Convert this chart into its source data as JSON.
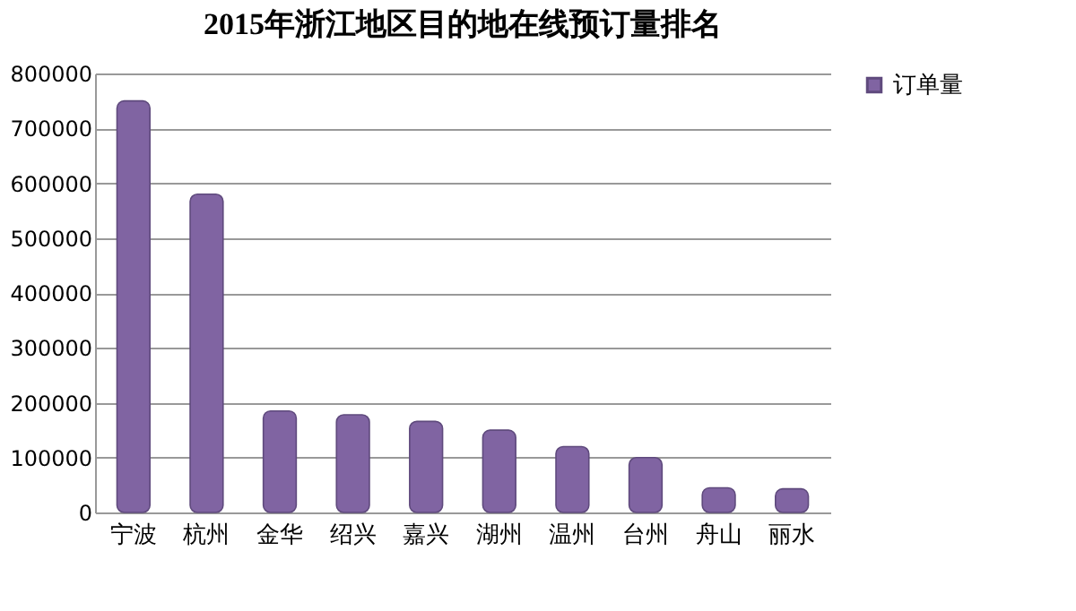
{
  "chart_data": {
    "type": "bar",
    "title": "2015年浙江地区目的地在线预订量排名",
    "categories": [
      "宁波",
      "杭州",
      "金华",
      "绍兴",
      "嘉兴",
      "湖州",
      "温州",
      "台州",
      "舟山",
      "丽水"
    ],
    "series": [
      {
        "name": "订单量",
        "color": "#8064a2",
        "values": [
          750000,
          580000,
          185000,
          178000,
          166000,
          150000,
          120000,
          100000,
          45000,
          43000
        ]
      }
    ],
    "ylim": [
      0,
      800000
    ],
    "yticks": [
      0,
      100000,
      200000,
      300000,
      400000,
      500000,
      600000,
      700000,
      800000
    ],
    "grid": "y",
    "legend": "right"
  }
}
